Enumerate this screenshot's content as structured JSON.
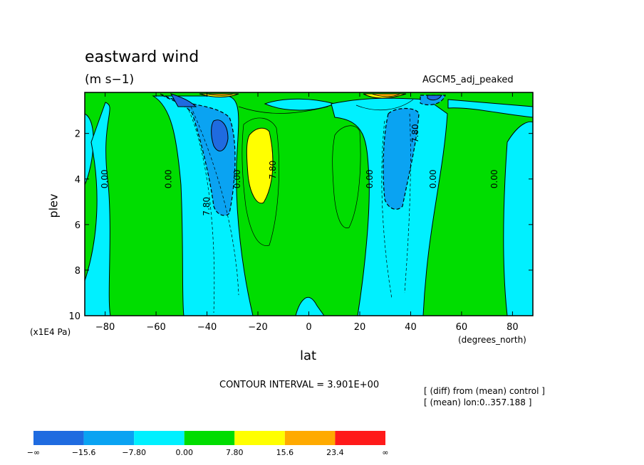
{
  "chart_data": {
    "type": "contour",
    "title": "eastward wind",
    "units": "(m s−1)",
    "experiment": "AGCM5_adj_peaked",
    "xlabel": "lat",
    "x_units": "(degrees_north)",
    "ylabel": "plev",
    "y_units": "(x1E4 Pa)",
    "xlim": [
      -88,
      88
    ],
    "ylim": [
      10,
      0.2
    ],
    "x_ticks": [
      -80,
      -60,
      -40,
      -20,
      0,
      20,
      40,
      60,
      80
    ],
    "x_tick_labels": [
      "−80",
      "−60",
      "−40",
      "−20",
      "0",
      "20",
      "40",
      "60",
      "80"
    ],
    "y_ticks": [
      2,
      4,
      6,
      8,
      10
    ],
    "y_tick_labels": [
      "2",
      "4",
      "6",
      "8",
      "10"
    ],
    "contour_interval_text": "CONTOUR INTERVAL = 3.901E+00",
    "notes": [
      "[ (diff) from (mean) control ]",
      "[ (mean) lon:0..357.188 ]"
    ],
    "contour_labels": [
      {
        "text": "0.00",
        "lat": -79,
        "plev": 4.0
      },
      {
        "text": "0.00",
        "lat": -54,
        "plev": 4.0
      },
      {
        "text": "7.80",
        "lat": -39,
        "plev": 5.2
      },
      {
        "text": "0.00",
        "lat": -27,
        "plev": 4.0
      },
      {
        "text": "7.80",
        "lat": -13,
        "plev": 3.6
      },
      {
        "text": "0.00",
        "lat": 25,
        "plev": 4.0
      },
      {
        "text": "7.80",
        "lat": 43,
        "plev": 2.0
      },
      {
        "text": "0.00",
        "lat": 50,
        "plev": 4.0
      },
      {
        "text": "0.00",
        "lat": 74,
        "plev": 4.0
      }
    ],
    "colorbar": {
      "levels": [
        "−∞",
        "−15.6",
        "−7.80",
        "0.00",
        "7.80",
        "15.6",
        "23.4",
        "∞"
      ],
      "colors": [
        "#1f6be0",
        "#0aa3f2",
        "#00f0ff",
        "#00dd00",
        "#ffff00",
        "#ffaa00",
        "#ff1a1a"
      ]
    }
  }
}
